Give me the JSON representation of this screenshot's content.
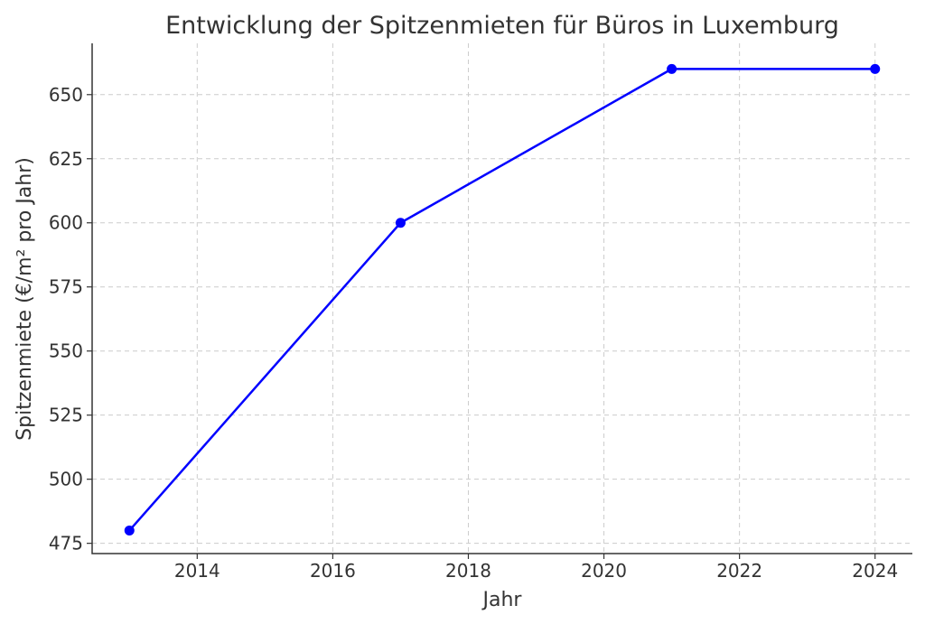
{
  "chart_data": {
    "type": "line",
    "title": "Entwicklung der Spitzenmieten für Büros in Luxemburg",
    "xlabel": "Jahr",
    "ylabel": "Spitzenmiete (€/m² pro Jahr)",
    "x": [
      2013,
      2017,
      2021,
      2024
    ],
    "series": [
      {
        "values": [
          480,
          600,
          660,
          660
        ],
        "color": "#0000ff"
      }
    ],
    "xticks": [
      2014,
      2016,
      2018,
      2020,
      2022,
      2024
    ],
    "yticks": [
      475,
      500,
      525,
      550,
      575,
      600,
      625,
      650
    ],
    "xlim": [
      2012.45,
      2024.55
    ],
    "ylim": [
      471,
      670
    ],
    "grid": true,
    "marker": "circle"
  }
}
